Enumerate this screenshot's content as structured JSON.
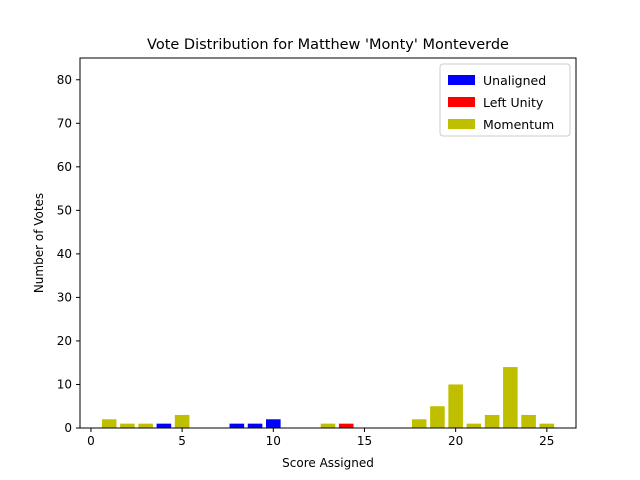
{
  "chart_data": {
    "type": "bar",
    "title": "Vote Distribution for Matthew 'Monty' Monteverde",
    "xlabel": "Score Assigned",
    "ylabel": "Number of Votes",
    "xlim": [
      -0.6,
      26.6
    ],
    "ylim": [
      0,
      85
    ],
    "xticks": [
      0,
      5,
      10,
      15,
      20,
      25
    ],
    "yticks": [
      0,
      10,
      20,
      30,
      40,
      50,
      60,
      70,
      80
    ],
    "grid": false,
    "legend_position": "top-right",
    "series": [
      {
        "name": "Unaligned",
        "color": "#0000ff",
        "points": [
          {
            "x": 4,
            "y": 1
          },
          {
            "x": 8,
            "y": 1
          },
          {
            "x": 9,
            "y": 1
          },
          {
            "x": 10,
            "y": 2
          }
        ]
      },
      {
        "name": "Left Unity",
        "color": "#ff0000",
        "points": [
          {
            "x": 14,
            "y": 1
          }
        ]
      },
      {
        "name": "Momentum",
        "color": "#bfbf00",
        "points": [
          {
            "x": 1,
            "y": 2
          },
          {
            "x": 2,
            "y": 1
          },
          {
            "x": 3,
            "y": 1
          },
          {
            "x": 5,
            "y": 3
          },
          {
            "x": 13,
            "y": 1
          },
          {
            "x": 18,
            "y": 2
          },
          {
            "x": 19,
            "y": 5
          },
          {
            "x": 20,
            "y": 10
          },
          {
            "x": 21,
            "y": 1
          },
          {
            "x": 22,
            "y": 3
          },
          {
            "x": 23,
            "y": 14
          },
          {
            "x": 24,
            "y": 3
          },
          {
            "x": 25,
            "y": 1
          }
        ]
      }
    ]
  }
}
